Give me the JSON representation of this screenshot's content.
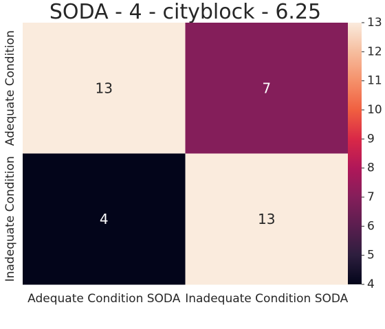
{
  "chart_data": {
    "type": "heatmap",
    "title": "SODA - 4 - cityblock - 6.25",
    "x_categories": [
      "Adequate Condition SODA",
      "Inadequate Condition SODA"
    ],
    "y_categories": [
      "Adequate Condition",
      "Inadequate Condition"
    ],
    "values": [
      [
        13,
        7
      ],
      [
        4,
        13
      ]
    ],
    "annotations": true,
    "colormap": "rocket",
    "colorbar": {
      "min": 4,
      "max": 13,
      "ticks": [
        4,
        5,
        6,
        7,
        8,
        9,
        10,
        11,
        12,
        13
      ]
    },
    "xlabel": "",
    "ylabel": ""
  }
}
